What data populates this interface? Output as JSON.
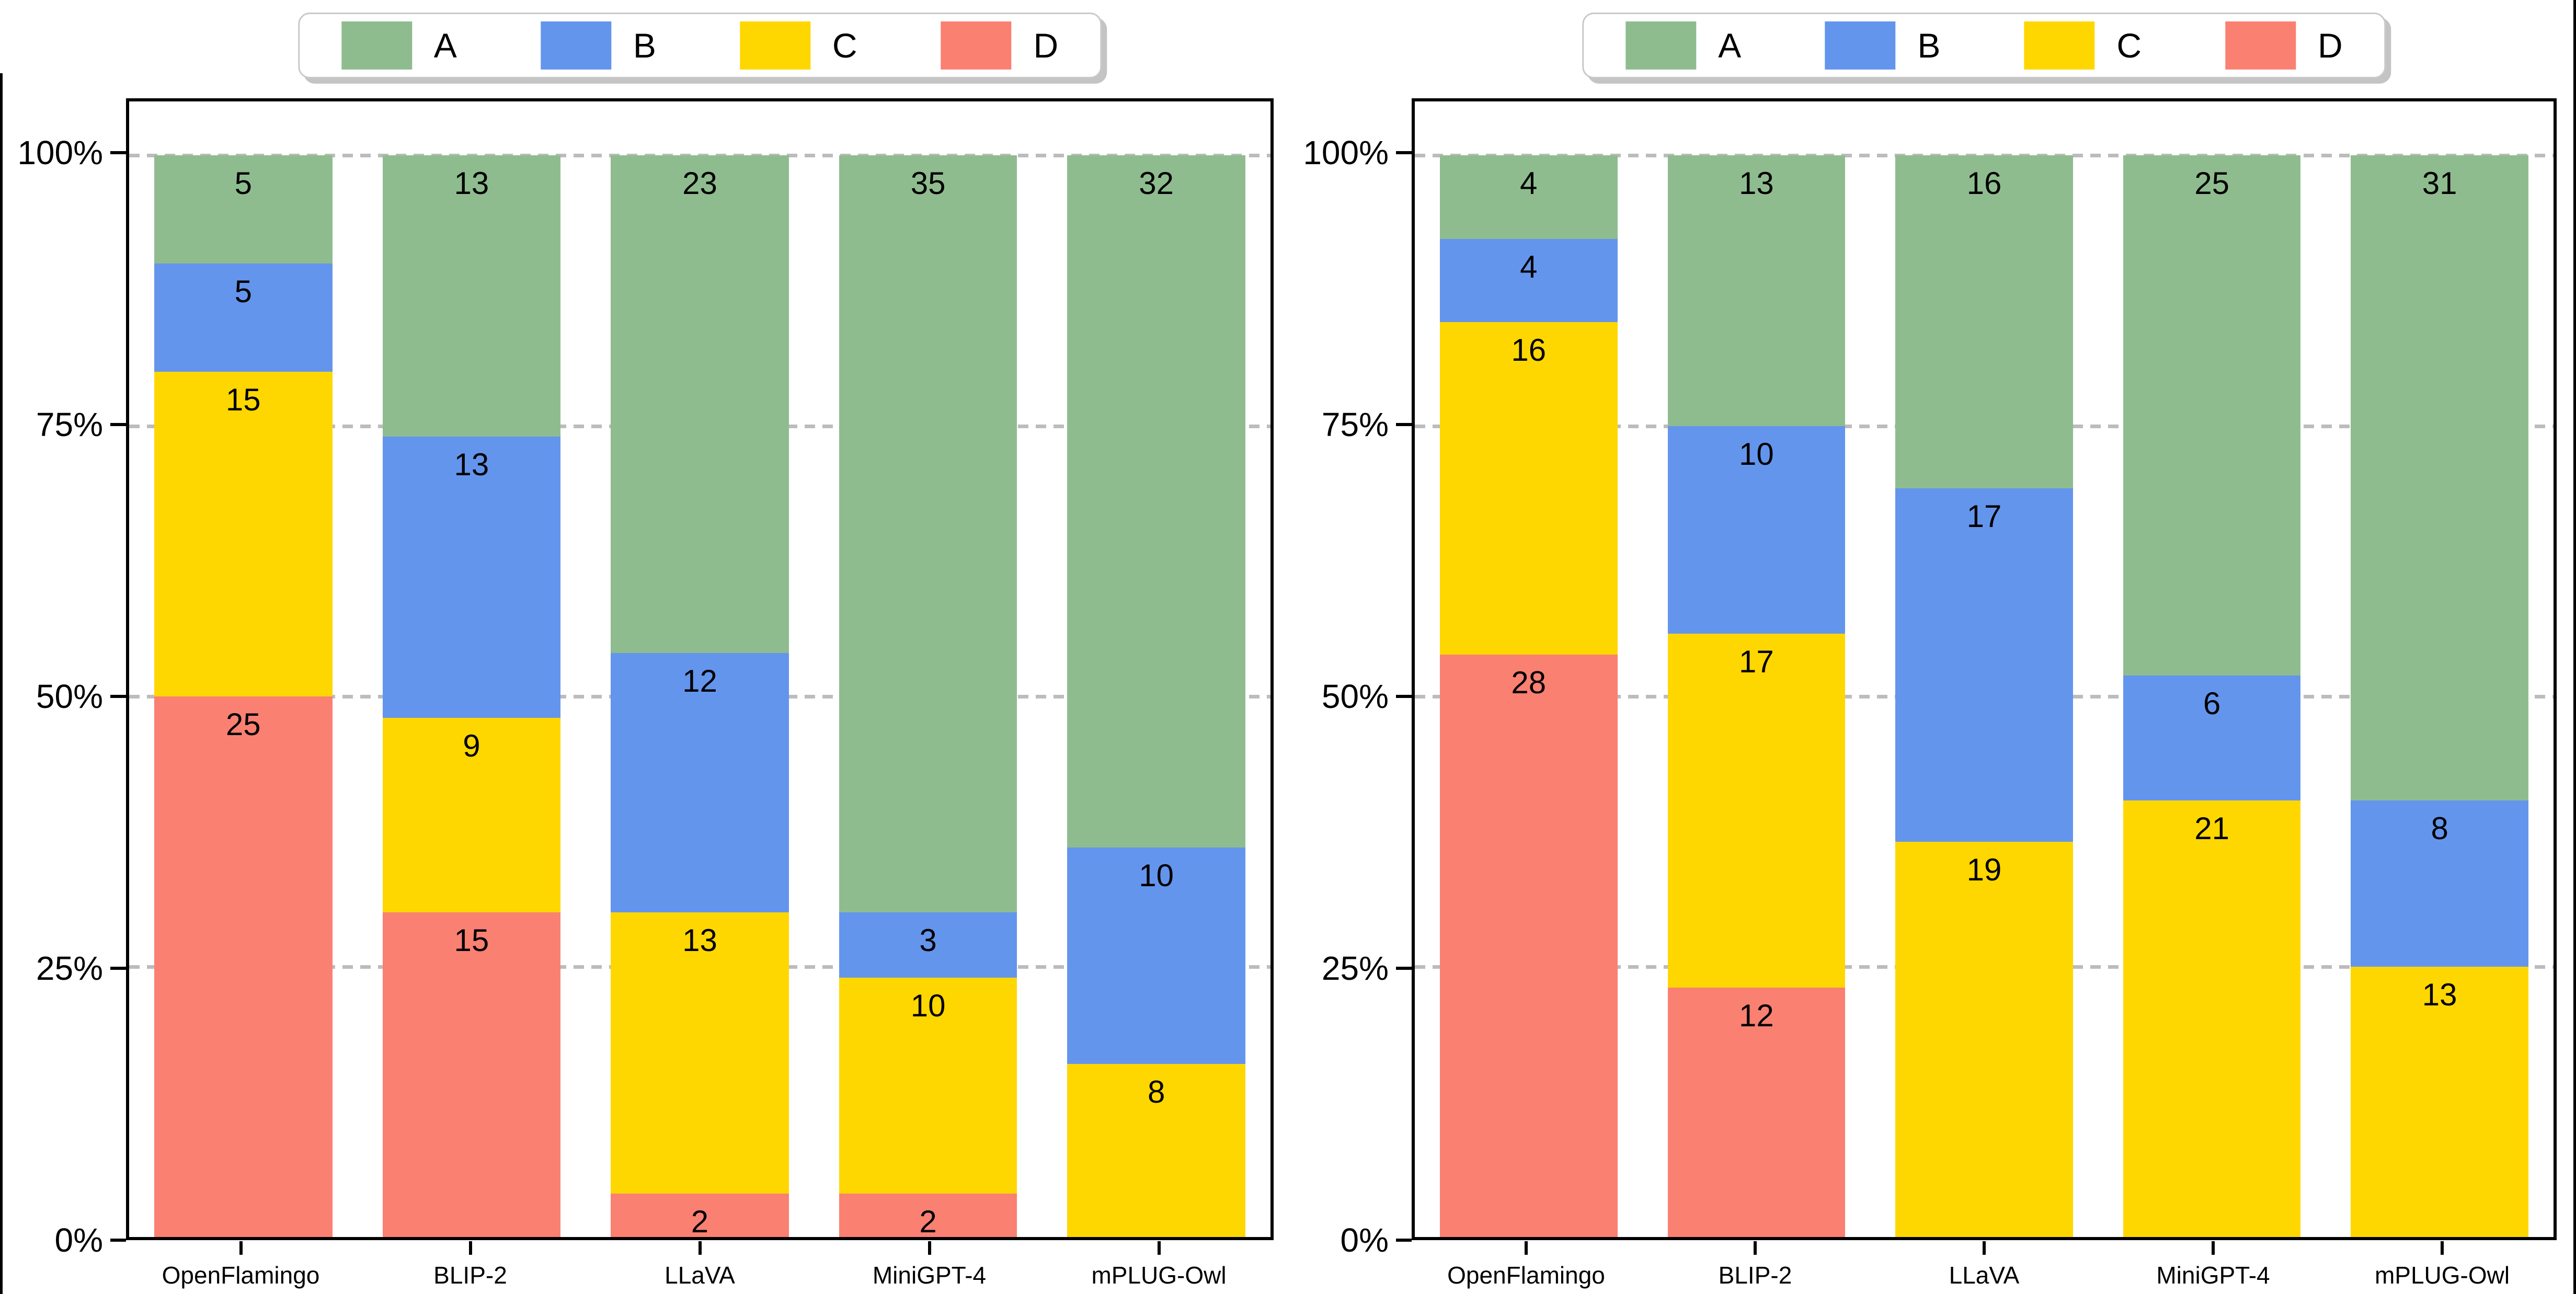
{
  "colors": {
    "A": "#8FBC8F",
    "B": "#6495ED",
    "C": "#FFD700",
    "D": "#FA8072"
  },
  "gridline_color": "#bcbcbc",
  "legend_items": [
    {
      "key": "A",
      "label": "A",
      "color": "#8FBC8F"
    },
    {
      "key": "B",
      "label": "B",
      "color": "#6495ED"
    },
    {
      "key": "C",
      "label": "C",
      "color": "#FFD700"
    },
    {
      "key": "D",
      "label": "D",
      "color": "#FA8072"
    }
  ],
  "y_ticks": [
    {
      "value": 0,
      "label": "0%"
    },
    {
      "value": 25,
      "label": "25%"
    },
    {
      "value": 50,
      "label": "50%"
    },
    {
      "value": 75,
      "label": "75%"
    },
    {
      "value": 100,
      "label": "100%"
    }
  ],
  "chart_data": [
    {
      "type": "bar",
      "stacked": true,
      "normalized": "percent",
      "title": "",
      "xlabel": "",
      "ylabel": "",
      "ylim_percent": [
        0,
        105
      ],
      "grid": "dashed horizontal at 25/50/75/100%",
      "legend_position": "top-center",
      "stack_order_bottom_to_top": [
        "D",
        "C",
        "B",
        "A"
      ],
      "value_labels": "raw counts shown near top of each segment",
      "categories": [
        "OpenFlamingo",
        "BLIP-2",
        "LLaVA",
        "MiniGPT-4",
        "mPLUG-Owl"
      ],
      "series": [
        {
          "name": "A",
          "values": [
            5,
            13,
            23,
            35,
            32
          ]
        },
        {
          "name": "B",
          "values": [
            5,
            13,
            12,
            3,
            10
          ]
        },
        {
          "name": "C",
          "values": [
            15,
            9,
            13,
            10,
            8
          ]
        },
        {
          "name": "D",
          "values": [
            25,
            15,
            2,
            2,
            0
          ]
        }
      ],
      "column_totals": [
        50,
        50,
        50,
        50,
        50
      ]
    },
    {
      "type": "bar",
      "stacked": true,
      "normalized": "percent",
      "title": "",
      "xlabel": "",
      "ylabel": "",
      "ylim_percent": [
        0,
        105
      ],
      "grid": "dashed horizontal at 25/50/75/100%",
      "legend_position": "top-center",
      "stack_order_bottom_to_top": [
        "D",
        "C",
        "B",
        "A"
      ],
      "value_labels": "raw counts shown near top of each segment",
      "categories": [
        "OpenFlamingo",
        "BLIP-2",
        "LLaVA",
        "MiniGPT-4",
        "mPLUG-Owl"
      ],
      "series": [
        {
          "name": "A",
          "values": [
            4,
            13,
            16,
            25,
            31
          ]
        },
        {
          "name": "B",
          "values": [
            4,
            10,
            17,
            6,
            8
          ]
        },
        {
          "name": "C",
          "values": [
            16,
            17,
            19,
            21,
            13
          ]
        },
        {
          "name": "D",
          "values": [
            28,
            12,
            0,
            0,
            0
          ]
        }
      ],
      "column_totals": [
        52,
        52,
        52,
        52,
        52
      ]
    }
  ]
}
